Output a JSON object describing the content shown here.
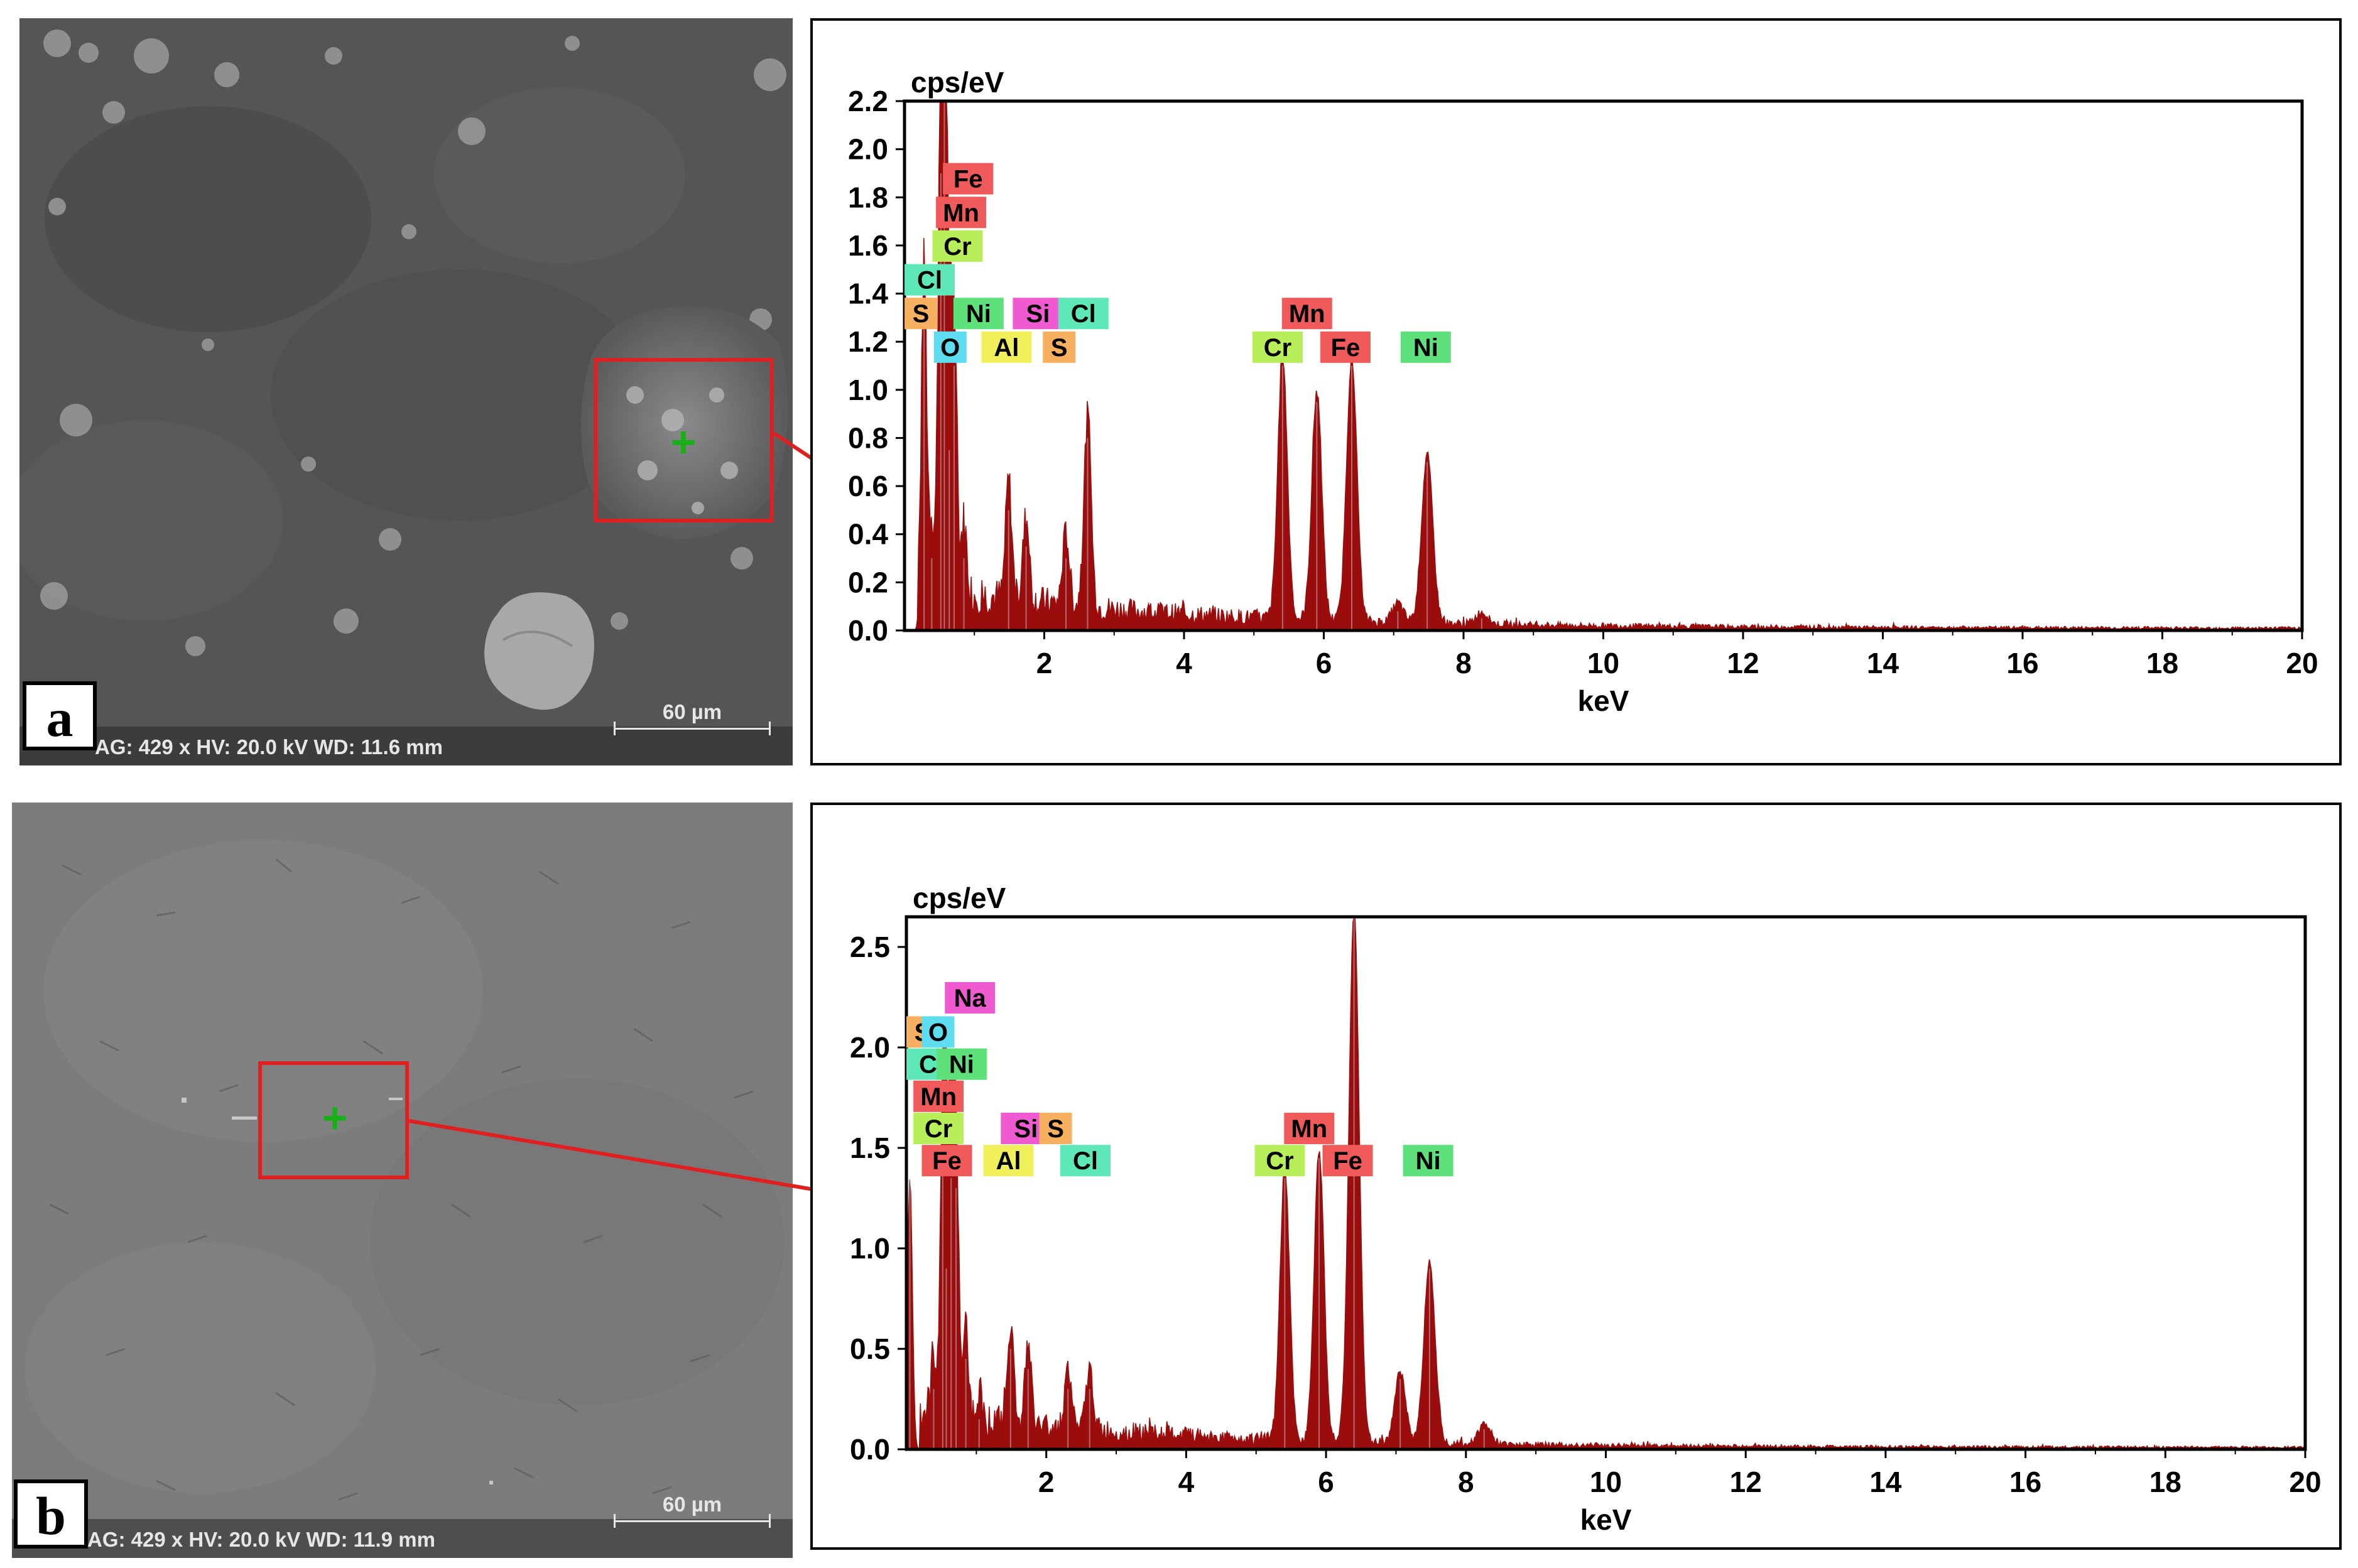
{
  "panels": {
    "a": {
      "label": "a",
      "sem_info": "AG: 429 x HV: 20.0 kV WD: 11.6 mm",
      "scale_label": "60 µm"
    },
    "b": {
      "label": "b",
      "sem_info": "AG: 429 x HV: 20.0 kV WD: 11.9 mm",
      "scale_label": "60 µm"
    }
  },
  "colors": {
    "spectrum_fill": "#9b0d0d",
    "selection_box": "#e02020",
    "marker": "#18b018"
  },
  "chart_data": [
    {
      "type": "area",
      "panel": "a",
      "ylabel": "cps/eV",
      "xlabel": "keV",
      "xlim": [
        0,
        20
      ],
      "ylim": [
        0,
        2.2
      ],
      "xticks": [
        2,
        4,
        6,
        8,
        10,
        12,
        14,
        16,
        18,
        20
      ],
      "yticks": [
        0.0,
        0.2,
        0.4,
        0.6,
        0.8,
        1.0,
        1.2,
        1.4,
        1.6,
        1.8,
        2.0,
        2.2
      ],
      "ytick_labels": [
        "0.0",
        "0.2",
        "0.4",
        "0.6",
        "0.8",
        "1.0",
        "1.2",
        "1.4",
        "1.6",
        "1.8",
        "2.0",
        "2.2"
      ],
      "grid": false,
      "peaks": [
        {
          "x": 0.28,
          "y": 1.35
        },
        {
          "x": 0.39,
          "y": 0.3
        },
        {
          "x": 0.52,
          "y": 1.9
        },
        {
          "x": 0.57,
          "y": 2.2
        },
        {
          "x": 0.64,
          "y": 0.75
        },
        {
          "x": 0.71,
          "y": 1.1
        },
        {
          "x": 0.85,
          "y": 0.3
        },
        {
          "x": 1.49,
          "y": 0.5
        },
        {
          "x": 1.74,
          "y": 0.35
        },
        {
          "x": 2.31,
          "y": 0.3
        },
        {
          "x": 2.62,
          "y": 0.8
        },
        {
          "x": 5.41,
          "y": 1.1
        },
        {
          "x": 5.9,
          "y": 0.95
        },
        {
          "x": 6.4,
          "y": 1.1
        },
        {
          "x": 7.06,
          "y": 0.08
        },
        {
          "x": 7.48,
          "y": 0.7
        },
        {
          "x": 8.26,
          "y": 0.05
        }
      ],
      "element_tags": [
        {
          "text": "Fe",
          "color": "#f05a5a",
          "x": 0.55,
          "y": 1.88
        },
        {
          "text": "Mn",
          "color": "#f05a5a",
          "x": 0.45,
          "y": 1.74
        },
        {
          "text": "Cr",
          "color": "#b8ee5a",
          "x": 0.4,
          "y": 1.6
        },
        {
          "text": "Cl",
          "color": "#5ee8b8",
          "x": 0.0,
          "y": 1.46
        },
        {
          "text": "S",
          "color": "#f6b060",
          "x": 0.0,
          "y": 1.32
        },
        {
          "text": "Ni",
          "color": "#5ee07a",
          "x": 0.7,
          "y": 1.32
        },
        {
          "text": "O",
          "color": "#5edcf0",
          "x": 0.42,
          "y": 1.18
        },
        {
          "text": "Si",
          "color": "#f05ad0",
          "x": 1.55,
          "y": 1.32
        },
        {
          "text": "Cl",
          "color": "#5ee8b8",
          "x": 2.2,
          "y": 1.32
        },
        {
          "text": "Al",
          "color": "#f0f05a",
          "x": 1.1,
          "y": 1.18
        },
        {
          "text": "S",
          "color": "#f6b060",
          "x": 1.98,
          "y": 1.18
        },
        {
          "text": "Mn",
          "color": "#f05a5a",
          "x": 5.4,
          "y": 1.32
        },
        {
          "text": "Cr",
          "color": "#b8ee5a",
          "x": 4.98,
          "y": 1.18
        },
        {
          "text": "Fe",
          "color": "#f05a5a",
          "x": 5.95,
          "y": 1.18
        },
        {
          "text": "Ni",
          "color": "#5ee07a",
          "x": 7.1,
          "y": 1.18
        }
      ]
    },
    {
      "type": "area",
      "panel": "b",
      "ylabel": "cps/eV",
      "xlabel": "keV",
      "xlim": [
        0,
        20
      ],
      "ylim": [
        0,
        2.65
      ],
      "xticks": [
        2,
        4,
        6,
        8,
        10,
        12,
        14,
        16,
        18,
        20
      ],
      "yticks": [
        0.0,
        0.5,
        1.0,
        1.5,
        2.0,
        2.5
      ],
      "ytick_labels": [
        "0.0",
        "0.5",
        "1.0",
        "1.5",
        "2.0",
        "2.5"
      ],
      "grid": false,
      "peaks": [
        {
          "x": 0.05,
          "y": 1.35
        },
        {
          "x": 0.39,
          "y": 0.3
        },
        {
          "x": 0.52,
          "y": 1.4
        },
        {
          "x": 0.57,
          "y": 0.9
        },
        {
          "x": 0.64,
          "y": 1.35
        },
        {
          "x": 0.71,
          "y": 1.3
        },
        {
          "x": 0.85,
          "y": 0.45
        },
        {
          "x": 1.04,
          "y": 0.15
        },
        {
          "x": 1.49,
          "y": 0.5
        },
        {
          "x": 1.74,
          "y": 0.4
        },
        {
          "x": 2.31,
          "y": 0.3
        },
        {
          "x": 2.62,
          "y": 0.3
        },
        {
          "x": 5.41,
          "y": 1.35
        },
        {
          "x": 5.9,
          "y": 1.45
        },
        {
          "x": 6.4,
          "y": 2.65
        },
        {
          "x": 7.06,
          "y": 0.35
        },
        {
          "x": 7.48,
          "y": 0.9
        },
        {
          "x": 8.26,
          "y": 0.1
        }
      ],
      "element_tags": [
        {
          "text": "Na",
          "color": "#f05ad0",
          "x": 0.55,
          "y": 2.25
        },
        {
          "text": "S",
          "color": "#f6b060",
          "x": 0.0,
          "y": 2.08
        },
        {
          "text": "O",
          "color": "#5edcf0",
          "x": 0.22,
          "y": 2.08
        },
        {
          "text": "Cl",
          "color": "#5ee8b8",
          "x": 0.0,
          "y": 1.92
        },
        {
          "text": "Ni",
          "color": "#5ee07a",
          "x": 0.43,
          "y": 1.92
        },
        {
          "text": "Mn",
          "color": "#f05a5a",
          "x": 0.1,
          "y": 1.76
        },
        {
          "text": "Cr",
          "color": "#b8ee5a",
          "x": 0.1,
          "y": 1.6
        },
        {
          "text": "Si",
          "color": "#f05ad0",
          "x": 1.35,
          "y": 1.6
        },
        {
          "text": "S",
          "color": "#f6b060",
          "x": 1.9,
          "y": 1.6
        },
        {
          "text": "Fe",
          "color": "#f05a5a",
          "x": 0.22,
          "y": 1.44
        },
        {
          "text": "Al",
          "color": "#f0f05a",
          "x": 1.1,
          "y": 1.44
        },
        {
          "text": "Cl",
          "color": "#5ee8b8",
          "x": 2.2,
          "y": 1.44
        },
        {
          "text": "Mn",
          "color": "#f05a5a",
          "x": 5.4,
          "y": 1.6
        },
        {
          "text": "Cr",
          "color": "#b8ee5a",
          "x": 4.98,
          "y": 1.44
        },
        {
          "text": "Fe",
          "color": "#f05a5a",
          "x": 5.95,
          "y": 1.44
        },
        {
          "text": "Ni",
          "color": "#5ee07a",
          "x": 7.1,
          "y": 1.44
        }
      ]
    }
  ]
}
